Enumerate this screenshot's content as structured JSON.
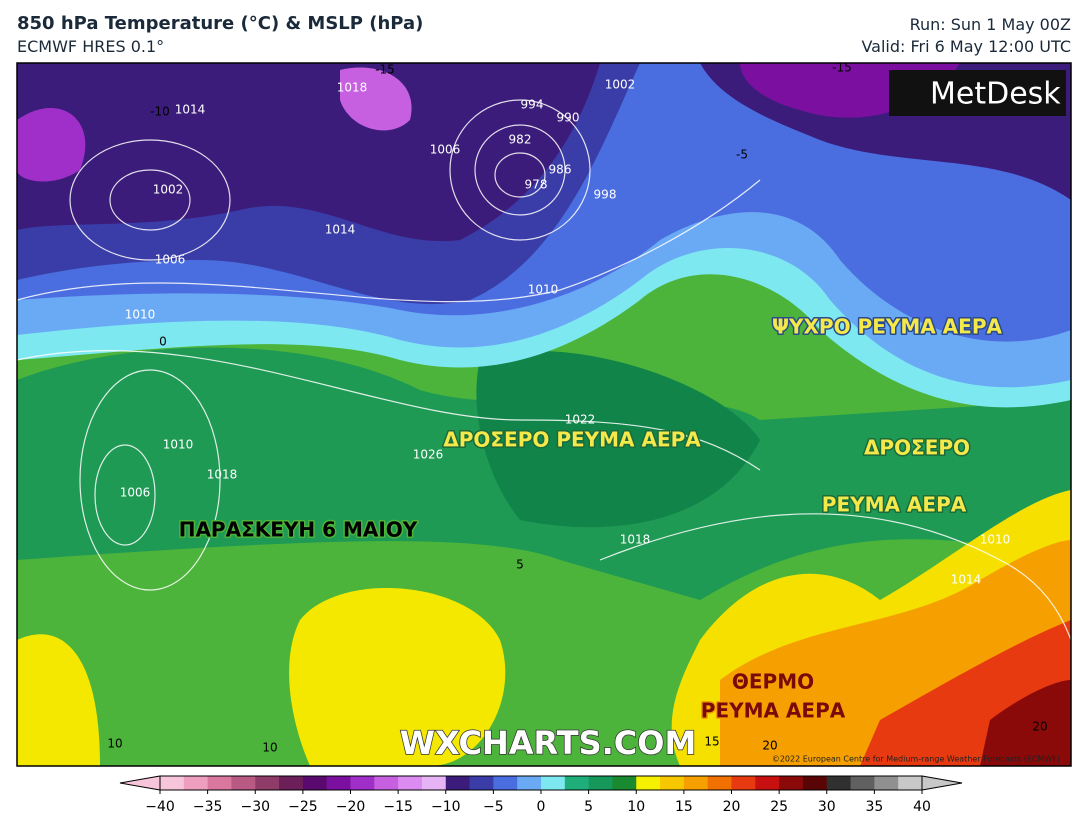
{
  "header": {
    "title": "850 hPa Temperature (°C) & MSLP (hPa)",
    "subtitle": "ECMWF HRES 0.1°",
    "run": "Run: Sun 1 May 00Z",
    "valid": "Valid: Fri 6 May 12:00 UTC"
  },
  "logo": "MetDesk",
  "map": {
    "annotations": [
      "ΨΥΧΡΟ ΡΕΥΜΑ ΑΕΡΑ",
      "ΔΡΟΣΕΡΟ ΡΕΥΜΑ ΑΕΡΑ",
      "ΔΡΟΣΕΡΟ",
      "ΡΕΥΜΑ ΑΕΡΑ",
      "ΠΑΡΑΣΚΕΥΗ 6 ΜΑΙΟΥ",
      "ΘΕΡΜΟ",
      "ΡΕΥΜΑ ΑΕΡΑ"
    ],
    "isobar_labels": [
      1014,
      1002,
      1006,
      1014,
      1018,
      1006,
      994,
      990,
      982,
      978,
      986,
      998,
      1002,
      1010,
      1010,
      1010,
      1018,
      1006,
      1022,
      1026,
      1018,
      1010,
      1014
    ],
    "temperature_labels": [
      -15,
      -10,
      -5,
      0,
      5,
      10,
      10,
      15,
      20,
      20,
      -15
    ],
    "watermark": "WXCHARTS.COM",
    "copyright": "©2022 European Centre for Medium-range Weather Forecasts (ECMWF)"
  },
  "colorbar": {
    "range": [
      -40,
      40
    ],
    "ticks": [
      {
        "value": -40,
        "label": "−40"
      },
      {
        "value": -35,
        "label": "−35"
      },
      {
        "value": -30,
        "label": "−30"
      },
      {
        "value": -25,
        "label": "−25"
      },
      {
        "value": -20,
        "label": "−20"
      },
      {
        "value": -15,
        "label": "−15"
      },
      {
        "value": -10,
        "label": "−10"
      },
      {
        "value": -5,
        "label": "−5"
      },
      0,
      5,
      10,
      15,
      20,
      25,
      30,
      35,
      40
    ],
    "colors": [
      "#f7c5d9",
      "#ee9fbf",
      "#d9779f",
      "#b85a84",
      "#8f3c69",
      "#6d1f5a",
      "#5a0a6e",
      "#7b0fa0",
      "#a02ec8",
      "#c660e0",
      "#dc8cf0",
      "#e6b4f5",
      "#3c1c7a",
      "#3a3ca8",
      "#4a6ee0",
      "#6aaaf5",
      "#7ee8f0",
      "#1fae7a",
      "#15985a",
      "#1a8a30",
      "#f5f000",
      "#f7c800",
      "#f5a000",
      "#f07000",
      "#e83a10",
      "#c81010",
      "#8a0a0a",
      "#5a0505",
      "#303030",
      "#606060",
      "#909090",
      "#c8c8c8"
    ]
  }
}
